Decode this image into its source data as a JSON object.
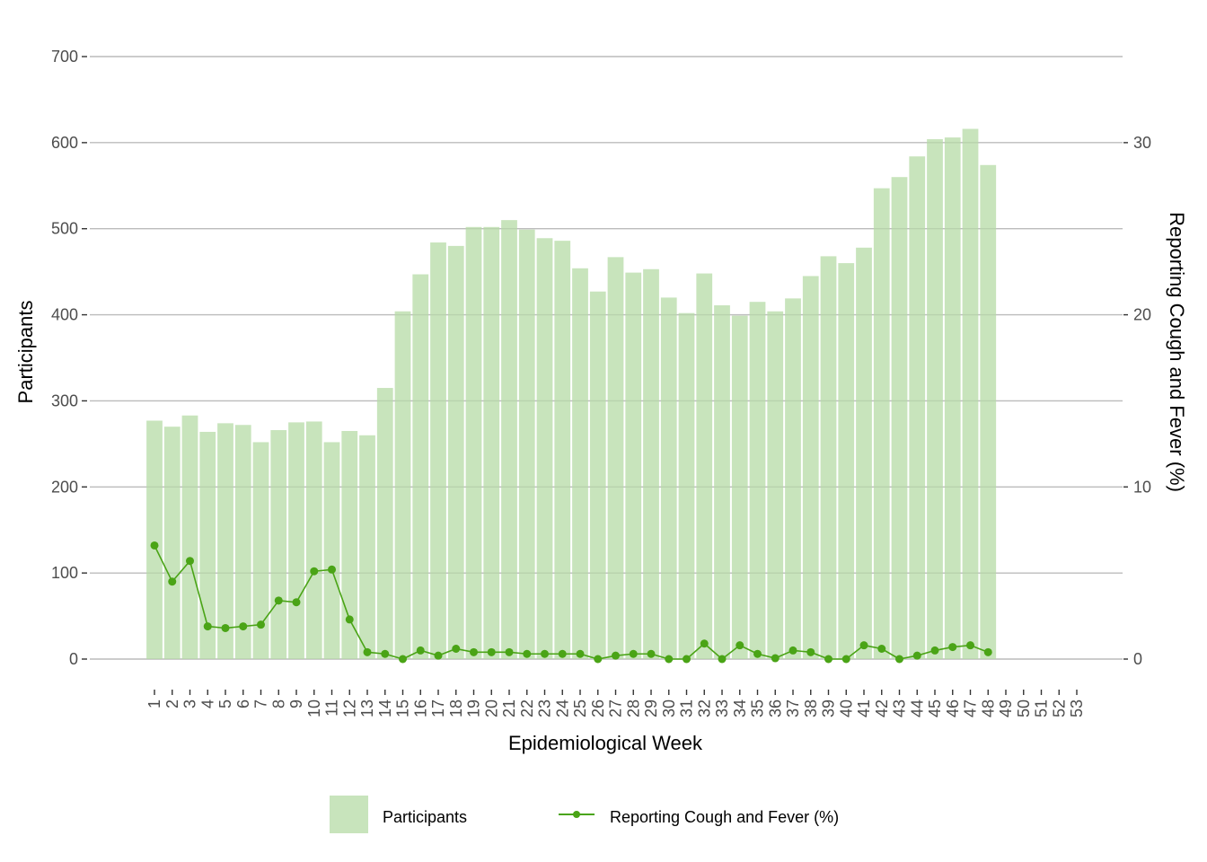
{
  "chart_data": {
    "type": "bar",
    "title": "",
    "xlabel": "Epidemiological Week",
    "ylabel": "Participants",
    "ylabel_right": "Reporting Cough and Fever (%)",
    "ylim": [
      0,
      700
    ],
    "ylim_right": [
      0,
      35
    ],
    "yticks": [
      0,
      100,
      200,
      300,
      400,
      500,
      600,
      700
    ],
    "yticks_right": [
      0,
      10,
      20,
      30
    ],
    "grid": true,
    "legend_position": "bottom",
    "categories": [
      "1",
      "2",
      "3",
      "4",
      "5",
      "6",
      "7",
      "8",
      "9",
      "10",
      "11",
      "12",
      "13",
      "14",
      "15",
      "16",
      "17",
      "18",
      "19",
      "20",
      "21",
      "22",
      "23",
      "24",
      "25",
      "26",
      "27",
      "28",
      "29",
      "30",
      "31",
      "32",
      "33",
      "34",
      "35",
      "36",
      "37",
      "38",
      "39",
      "40",
      "41",
      "42",
      "43",
      "44",
      "45",
      "46",
      "47",
      "48",
      "49",
      "50",
      "51",
      "52",
      "53"
    ],
    "series": [
      {
        "name": "Participants",
        "type": "bar",
        "axis": "left",
        "color": "#c8e4bc",
        "values": [
          277,
          270,
          283,
          264,
          274,
          272,
          252,
          266,
          275,
          276,
          252,
          265,
          260,
          315,
          404,
          447,
          484,
          480,
          502,
          502,
          510,
          499,
          489,
          486,
          454,
          427,
          467,
          449,
          453,
          420,
          402,
          448,
          411,
          399,
          415,
          404,
          419,
          445,
          468,
          460,
          478,
          547,
          560,
          584,
          604,
          606,
          616,
          574,
          null,
          null,
          null,
          null,
          null
        ]
      },
      {
        "name": "Reporting Cough and Fever (%)",
        "type": "line",
        "axis": "right",
        "color": "#4aa416",
        "values": [
          6.6,
          4.5,
          5.7,
          1.9,
          1.8,
          1.9,
          2.0,
          3.4,
          3.3,
          5.1,
          5.2,
          2.3,
          0.4,
          0.3,
          0.0,
          0.5,
          0.2,
          0.6,
          0.4,
          0.4,
          0.4,
          0.3,
          0.3,
          0.3,
          0.3,
          0.0,
          0.2,
          0.3,
          0.3,
          0.0,
          0.0,
          0.9,
          0.0,
          0.8,
          0.3,
          0.05,
          0.5,
          0.4,
          0.0,
          0.0,
          0.8,
          0.6,
          0.0,
          0.2,
          0.5,
          0.7,
          0.8,
          0.4,
          null,
          null,
          null,
          null,
          null
        ]
      }
    ]
  },
  "legend": {
    "items": [
      "Participants",
      "Reporting Cough and Fever (%)"
    ]
  }
}
